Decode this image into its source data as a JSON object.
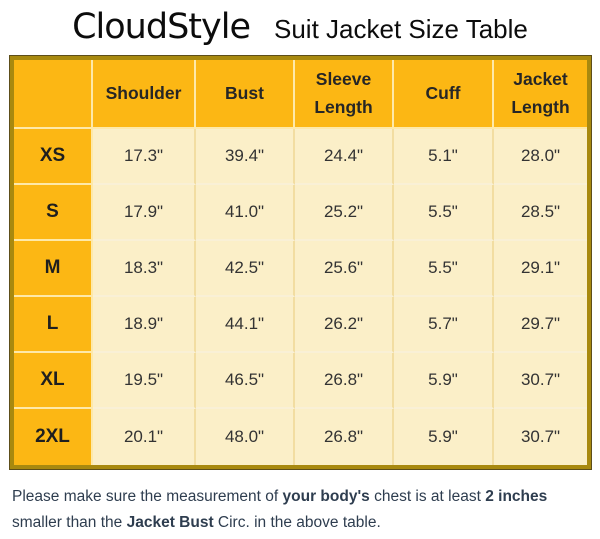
{
  "page": {
    "brand": "CloudStyle",
    "title": "Suit Jacket Size Table"
  },
  "colors": {
    "header_bg": "#fcb714",
    "cell_bg": "#fbefc8",
    "table_border": "#a8890f",
    "footer_text": "#2e3d4f"
  },
  "table": {
    "columns": [
      "",
      "Shoulder",
      "Bust",
      "Sleeve Length",
      "Cuff",
      "Jacket Length"
    ],
    "rows": [
      {
        "size": "XS",
        "values": [
          "17.3\"",
          "39.4\"",
          "24.4\"",
          "5.1\"",
          "28.0\""
        ]
      },
      {
        "size": "S",
        "values": [
          "17.9\"",
          "41.0\"",
          "25.2\"",
          "5.5\"",
          "28.5\""
        ]
      },
      {
        "size": "M",
        "values": [
          "18.3\"",
          "42.5\"",
          "25.6\"",
          "5.5\"",
          "29.1\""
        ]
      },
      {
        "size": "L",
        "values": [
          "18.9\"",
          "44.1\"",
          "26.2\"",
          "5.7\"",
          "29.7\""
        ]
      },
      {
        "size": "XL",
        "values": [
          "19.5\"",
          "46.5\"",
          "26.8\"",
          "5.9\"",
          "30.7\""
        ]
      },
      {
        "size": "2XL",
        "values": [
          "20.1\"",
          "48.0\"",
          "26.8\"",
          "5.9\"",
          "30.7\""
        ]
      }
    ]
  },
  "footer": {
    "lines": [
      [
        {
          "t": "Please make sure the measurement of ",
          "b": false
        },
        {
          "t": "your body's",
          "b": true
        },
        {
          "t": " chest is at least ",
          "b": false
        },
        {
          "t": "2 inches",
          "b": true
        }
      ],
      [
        {
          "t": "smaller than the ",
          "b": false
        },
        {
          "t": "Jacket Bust",
          "b": true
        },
        {
          "t": " Circ. in the above table.",
          "b": false
        }
      ]
    ]
  }
}
